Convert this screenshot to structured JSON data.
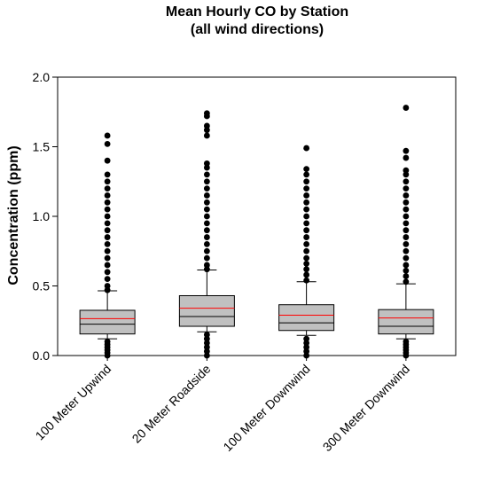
{
  "chart_data": {
    "type": "box",
    "title": "Mean  Hourly CO by Station",
    "subtitle": "(all wind directions)",
    "xlabel": "",
    "ylabel": "Concentration (ppm)",
    "ylim": [
      0.0,
      2.0
    ],
    "yticks": [
      0.0,
      0.5,
      1.0,
      1.5,
      2.0
    ],
    "ytick_labels": [
      "0.0",
      "0.5",
      "1.0",
      "1.5",
      "2.0"
    ],
    "grid": false,
    "legend": "none",
    "colors": {
      "box_fill": "#c0c0c0",
      "median": "#000000",
      "mean": "#ff0000",
      "outlier": "#000000"
    },
    "categories": [
      "100 Meter Upwind",
      "20 Meter Roadside",
      "100 Meter Downwind",
      "300 Meter Downwind"
    ],
    "boxes": [
      {
        "q1": 0.155,
        "median": 0.225,
        "mean": 0.265,
        "q3": 0.325,
        "whisker_low": 0.12,
        "whisker_high": 0.465,
        "outliers_high": [
          0.47,
          0.5,
          0.55,
          0.6,
          0.65,
          0.7,
          0.75,
          0.8,
          0.85,
          0.9,
          0.95,
          1.0,
          1.05,
          1.1,
          1.15,
          1.2,
          1.25,
          1.3,
          1.4,
          1.52,
          1.58
        ],
        "outliers_low": [
          0.0,
          0.02,
          0.04,
          0.06,
          0.08,
          0.1
        ]
      },
      {
        "q1": 0.21,
        "median": 0.28,
        "mean": 0.34,
        "q3": 0.43,
        "whisker_low": 0.17,
        "whisker_high": 0.615,
        "outliers_high": [
          0.62,
          0.65,
          0.7,
          0.75,
          0.8,
          0.85,
          0.9,
          0.95,
          1.0,
          1.05,
          1.1,
          1.15,
          1.2,
          1.25,
          1.3,
          1.35,
          1.38,
          1.58,
          1.62,
          1.65,
          1.72,
          1.74
        ],
        "outliers_low": [
          0.0,
          0.03,
          0.06,
          0.09,
          0.12,
          0.15
        ]
      },
      {
        "q1": 0.18,
        "median": 0.235,
        "mean": 0.29,
        "q3": 0.365,
        "whisker_low": 0.145,
        "whisker_high": 0.53,
        "outliers_high": [
          0.54,
          0.58,
          0.62,
          0.66,
          0.7,
          0.75,
          0.8,
          0.85,
          0.9,
          0.95,
          1.0,
          1.05,
          1.1,
          1.15,
          1.2,
          1.25,
          1.3,
          1.34,
          1.49
        ],
        "outliers_low": [
          0.0,
          0.03,
          0.06,
          0.09,
          0.12
        ]
      },
      {
        "q1": 0.155,
        "median": 0.21,
        "mean": 0.27,
        "q3": 0.33,
        "whisker_low": 0.12,
        "whisker_high": 0.515,
        "outliers_high": [
          0.53,
          0.57,
          0.61,
          0.65,
          0.7,
          0.75,
          0.8,
          0.85,
          0.9,
          0.95,
          1.0,
          1.05,
          1.1,
          1.15,
          1.2,
          1.25,
          1.3,
          1.33,
          1.42,
          1.47,
          1.78
        ],
        "outliers_low": [
          0.0,
          0.02,
          0.04,
          0.06,
          0.08,
          0.1
        ]
      }
    ]
  }
}
